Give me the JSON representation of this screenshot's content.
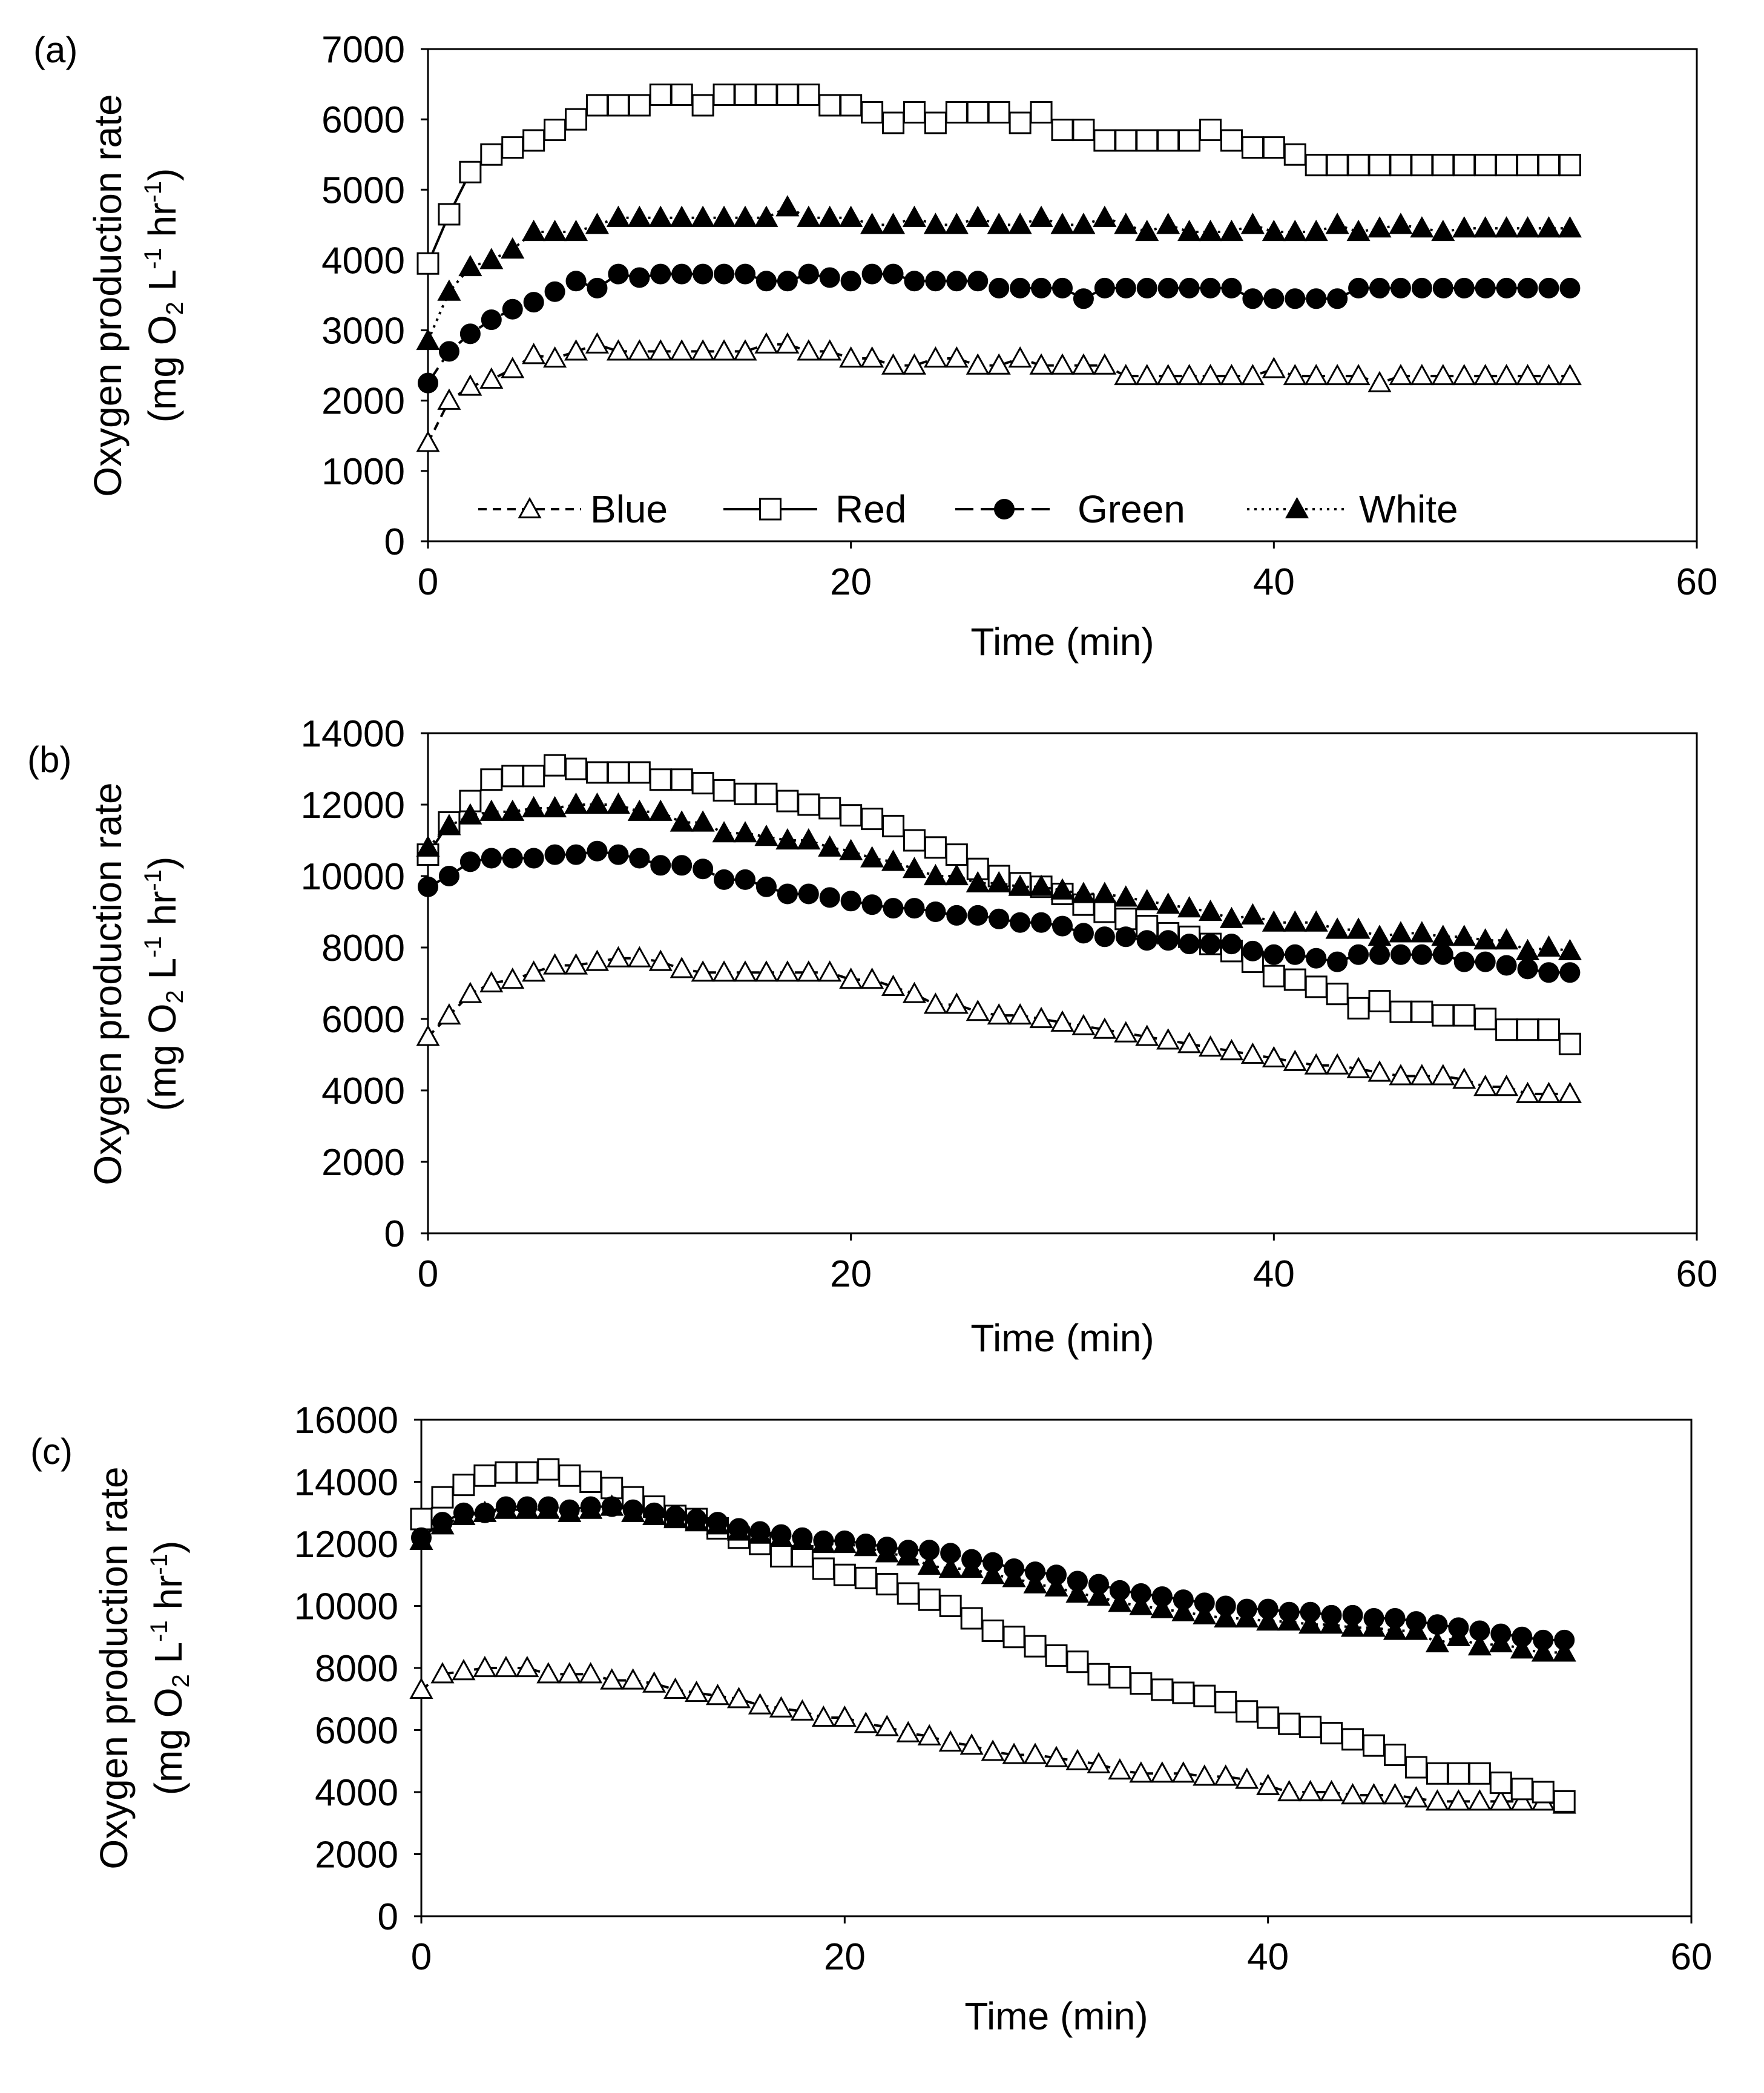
{
  "chart_data": [
    {
      "type": "line",
      "panel_label": "(a)",
      "xlabel": "Time (min)",
      "ylabel_line1": "Oxygen production rate",
      "ylabel_line2": {
        "a": "(mg O",
        "sub": "2",
        "b": " L",
        "sup1": "-1",
        "c": " hr",
        "sup2": "-1",
        "d": ")"
      },
      "xlim": [
        0,
        60
      ],
      "ylim": [
        0,
        7000
      ],
      "xticks": [
        0,
        20,
        40,
        60
      ],
      "yticks": [
        0,
        1000,
        2000,
        3000,
        4000,
        5000,
        6000,
        7000
      ],
      "grid": false,
      "legend": "bottom-inside",
      "series": [
        {
          "name": "Blue",
          "marker": "open-triangle",
          "line": "dashed",
          "values": [
            1400,
            2000,
            2200,
            2300,
            2450,
            2650,
            2600,
            2700,
            2800,
            2700,
            2700,
            2700,
            2700,
            2700,
            2700,
            2700,
            2800,
            2800,
            2700,
            2700,
            2600,
            2600,
            2500,
            2500,
            2600,
            2600,
            2500,
            2500,
            2600,
            2500,
            2500,
            2500,
            2500,
            2350,
            2350,
            2350,
            2350,
            2350,
            2350,
            2350,
            2450,
            2350,
            2350,
            2350,
            2350,
            2250,
            2350,
            2350,
            2350,
            2350,
            2350,
            2350,
            2350,
            2350,
            2350
          ]
        },
        {
          "name": "Red",
          "marker": "open-square",
          "line": "solid",
          "values": [
            3950,
            4650,
            5250,
            5500,
            5600,
            5700,
            5850,
            6000,
            6200,
            6200,
            6200,
            6350,
            6350,
            6200,
            6350,
            6350,
            6350,
            6350,
            6350,
            6200,
            6200,
            6100,
            5950,
            6100,
            5950,
            6100,
            6100,
            6100,
            5950,
            6100,
            5850,
            5850,
            5700,
            5700,
            5700,
            5700,
            5700,
            5850,
            5700,
            5600,
            5600,
            5500,
            5350,
            5350,
            5350,
            5350,
            5350,
            5350,
            5350,
            5350,
            5350,
            5350,
            5350,
            5350,
            5350
          ]
        },
        {
          "name": "Green",
          "marker": "filled-circle",
          "line": "long-dash",
          "values": [
            2250,
            2700,
            2950,
            3150,
            3300,
            3400,
            3550,
            3700,
            3600,
            3800,
            3750,
            3800,
            3800,
            3800,
            3800,
            3800,
            3700,
            3700,
            3800,
            3750,
            3700,
            3800,
            3800,
            3700,
            3700,
            3700,
            3700,
            3600,
            3600,
            3600,
            3600,
            3450,
            3600,
            3600,
            3600,
            3600,
            3600,
            3600,
            3600,
            3450,
            3450,
            3450,
            3450,
            3450,
            3600,
            3600,
            3600,
            3600,
            3600,
            3600,
            3600,
            3600,
            3600,
            3600,
            3600
          ]
        },
        {
          "name": "White",
          "marker": "filled-triangle",
          "line": "dotted",
          "values": [
            2850,
            3550,
            3900,
            4000,
            4150,
            4400,
            4400,
            4400,
            4500,
            4600,
            4600,
            4600,
            4600,
            4600,
            4600,
            4600,
            4600,
            4750,
            4600,
            4600,
            4600,
            4500,
            4500,
            4600,
            4500,
            4500,
            4600,
            4500,
            4500,
            4600,
            4500,
            4500,
            4600,
            4500,
            4400,
            4500,
            4400,
            4400,
            4400,
            4500,
            4400,
            4400,
            4400,
            4500,
            4400,
            4450,
            4500,
            4450,
            4400,
            4450,
            4450,
            4450,
            4450,
            4450,
            4450
          ]
        }
      ]
    },
    {
      "type": "line",
      "panel_label": "(b)",
      "xlabel": "Time (min)",
      "ylabel_line1": "Oxygen production rate",
      "ylabel_line2": {
        "a": "(mg O",
        "sub": "2",
        "b": " L",
        "sup1": "-1",
        "c": " hr",
        "sup2": "-1",
        "d": ")"
      },
      "xlim": [
        0,
        60
      ],
      "ylim": [
        0,
        14000
      ],
      "xticks": [
        0,
        20,
        40,
        60
      ],
      "yticks": [
        0,
        2000,
        4000,
        6000,
        8000,
        10000,
        12000,
        14000
      ],
      "grid": false,
      "series": [
        {
          "name": "Blue",
          "marker": "open-triangle",
          "line": "dashed",
          "values": [
            5500,
            6100,
            6700,
            7000,
            7100,
            7300,
            7500,
            7500,
            7600,
            7700,
            7700,
            7600,
            7400,
            7300,
            7300,
            7300,
            7300,
            7300,
            7300,
            7300,
            7100,
            7100,
            6900,
            6700,
            6400,
            6400,
            6200,
            6100,
            6100,
            6000,
            5900,
            5800,
            5700,
            5600,
            5500,
            5400,
            5300,
            5200,
            5100,
            5000,
            4900,
            4800,
            4700,
            4700,
            4600,
            4500,
            4400,
            4400,
            4400,
            4300,
            4100,
            4100,
            3900,
            3900,
            3900
          ]
        },
        {
          "name": "Red",
          "marker": "open-square",
          "line": "solid",
          "values": [
            10600,
            11500,
            12100,
            12700,
            12800,
            12800,
            13100,
            13000,
            12900,
            12900,
            12900,
            12700,
            12700,
            12600,
            12400,
            12300,
            12300,
            12100,
            12000,
            11900,
            11700,
            11600,
            11400,
            11000,
            10800,
            10600,
            10200,
            10000,
            9800,
            9700,
            9500,
            9200,
            9000,
            8800,
            8600,
            8400,
            8300,
            8100,
            7900,
            7600,
            7200,
            7100,
            6900,
            6700,
            6300,
            6500,
            6200,
            6200,
            6100,
            6100,
            6000,
            5700,
            5700,
            5700,
            5300
          ]
        },
        {
          "name": "Green",
          "marker": "filled-circle",
          "line": "long-dash",
          "values": [
            9700,
            10000,
            10400,
            10500,
            10500,
            10500,
            10600,
            10600,
            10700,
            10600,
            10500,
            10300,
            10300,
            10200,
            9900,
            9900,
            9700,
            9500,
            9500,
            9400,
            9300,
            9200,
            9100,
            9100,
            9000,
            8900,
            8900,
            8800,
            8700,
            8700,
            8600,
            8400,
            8300,
            8300,
            8200,
            8200,
            8100,
            8100,
            8100,
            7900,
            7800,
            7800,
            7700,
            7600,
            7800,
            7800,
            7800,
            7800,
            7800,
            7600,
            7600,
            7500,
            7400,
            7300,
            7300
          ]
        },
        {
          "name": "White",
          "marker": "filled-triangle",
          "line": "dotted",
          "values": [
            10800,
            11400,
            11700,
            11800,
            11800,
            11900,
            11900,
            12000,
            12000,
            12000,
            11800,
            11800,
            11500,
            11500,
            11200,
            11200,
            11100,
            11000,
            11000,
            10800,
            10700,
            10500,
            10400,
            10200,
            10000,
            10000,
            9800,
            9800,
            9700,
            9700,
            9600,
            9500,
            9500,
            9400,
            9300,
            9200,
            9100,
            9000,
            8800,
            8900,
            8700,
            8700,
            8700,
            8500,
            8500,
            8300,
            8400,
            8400,
            8300,
            8300,
            8200,
            8200,
            7900,
            8000,
            7900
          ]
        }
      ]
    },
    {
      "type": "line",
      "panel_label": "(c)",
      "xlabel": "Time (min)",
      "ylabel_line1": "Oxygen production rate",
      "ylabel_line2": {
        "a": "(mg O",
        "sub": "2",
        "b": " L",
        "sup1": "-1",
        "c": " hr",
        "sup2": "-1",
        "d": ")"
      },
      "xlim": [
        0,
        60
      ],
      "ylim": [
        0,
        16000
      ],
      "xticks": [
        0,
        20,
        40,
        60
      ],
      "yticks": [
        0,
        2000,
        4000,
        6000,
        8000,
        10000,
        12000,
        14000,
        16000
      ],
      "grid": false,
      "series": [
        {
          "name": "Blue",
          "marker": "open-triangle",
          "line": "dashed",
          "values": [
            7300,
            7800,
            7900,
            8000,
            8000,
            8000,
            7800,
            7800,
            7800,
            7600,
            7600,
            7500,
            7300,
            7200,
            7100,
            7000,
            6800,
            6700,
            6600,
            6400,
            6400,
            6200,
            6100,
            5900,
            5800,
            5600,
            5500,
            5300,
            5200,
            5200,
            5100,
            5000,
            4900,
            4700,
            4600,
            4600,
            4600,
            4500,
            4500,
            4400,
            4200,
            4000,
            4000,
            4000,
            3900,
            3900,
            3900,
            3800,
            3700,
            3700,
            3700,
            3700,
            3700,
            3700,
            3600
          ]
        },
        {
          "name": "Red",
          "marker": "open-square",
          "line": "solid",
          "values": [
            12800,
            13500,
            13900,
            14200,
            14300,
            14300,
            14400,
            14200,
            14000,
            13800,
            13500,
            13200,
            12900,
            12800,
            12500,
            12200,
            12000,
            11600,
            11600,
            11200,
            11000,
            10900,
            10700,
            10400,
            10200,
            10000,
            9600,
            9200,
            9000,
            8700,
            8400,
            8200,
            7800,
            7700,
            7500,
            7300,
            7200,
            7100,
            6900,
            6600,
            6400,
            6200,
            6100,
            5900,
            5700,
            5500,
            5200,
            4800,
            4600,
            4600,
            4600,
            4300,
            4100,
            4000,
            3700
          ]
        },
        {
          "name": "Green",
          "marker": "filled-circle",
          "line": "long-dash",
          "values": [
            12200,
            12700,
            13000,
            13000,
            13200,
            13200,
            13200,
            13100,
            13200,
            13200,
            13100,
            13000,
            12900,
            12800,
            12700,
            12500,
            12400,
            12300,
            12200,
            12100,
            12100,
            12000,
            11900,
            11800,
            11800,
            11700,
            11500,
            11400,
            11200,
            11100,
            11000,
            10800,
            10700,
            10500,
            10400,
            10300,
            10200,
            10100,
            10000,
            9900,
            9900,
            9800,
            9800,
            9700,
            9700,
            9600,
            9600,
            9500,
            9400,
            9300,
            9200,
            9100,
            9000,
            8900,
            8900
          ]
        },
        {
          "name": "White",
          "marker": "filled-triangle",
          "line": "dotted",
          "values": [
            12100,
            12600,
            12900,
            13000,
            13100,
            13100,
            13100,
            13000,
            13100,
            13200,
            13000,
            12900,
            12800,
            12700,
            12600,
            12400,
            12300,
            12200,
            12100,
            12000,
            12000,
            11900,
            11700,
            11600,
            11300,
            11200,
            11200,
            11000,
            10900,
            10700,
            10600,
            10400,
            10300,
            10100,
            10000,
            9900,
            9800,
            9700,
            9600,
            9600,
            9500,
            9500,
            9400,
            9400,
            9300,
            9300,
            9200,
            9200,
            8800,
            9000,
            8700,
            8800,
            8600,
            8500,
            8500
          ]
        }
      ]
    }
  ]
}
